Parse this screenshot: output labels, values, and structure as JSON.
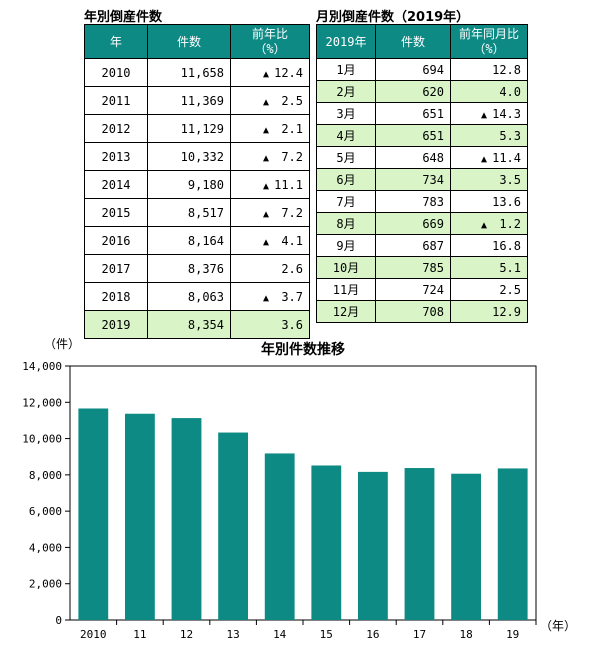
{
  "left_table": {
    "title": "年別倒産件数",
    "headers": [
      "年",
      "件数",
      "前年比",
      "（%）"
    ],
    "rows": [
      {
        "year": "2010",
        "count": "11,658",
        "tri": "▲",
        "ratio": "12.4"
      },
      {
        "year": "2011",
        "count": "11,369",
        "tri": "▲",
        "ratio": "2.5"
      },
      {
        "year": "2012",
        "count": "11,129",
        "tri": "▲",
        "ratio": "2.1"
      },
      {
        "year": "2013",
        "count": "10,332",
        "tri": "▲",
        "ratio": "7.2"
      },
      {
        "year": "2014",
        "count": "9,180",
        "tri": "▲",
        "ratio": "11.1"
      },
      {
        "year": "2015",
        "count": "8,517",
        "tri": "▲",
        "ratio": "7.2"
      },
      {
        "year": "2016",
        "count": "8,164",
        "tri": "▲",
        "ratio": "4.1"
      },
      {
        "year": "2017",
        "count": "8,376",
        "tri": "",
        "ratio": "2.6"
      },
      {
        "year": "2018",
        "count": "8,063",
        "tri": "▲",
        "ratio": "3.7"
      },
      {
        "year": "2019",
        "count": "8,354",
        "tri": "",
        "ratio": "3.6"
      }
    ]
  },
  "right_table": {
    "title": "月別倒産件数（2019年）",
    "headers": [
      "2019年",
      "件数",
      "前年同月比",
      "（%）"
    ],
    "rows": [
      {
        "month": "1月",
        "count": "694",
        "tri": "",
        "ratio": "12.8"
      },
      {
        "month": "2月",
        "count": "620",
        "tri": "",
        "ratio": "4.0"
      },
      {
        "month": "3月",
        "count": "651",
        "tri": "▲",
        "ratio": "14.3"
      },
      {
        "month": "4月",
        "count": "651",
        "tri": "",
        "ratio": "5.3"
      },
      {
        "month": "5月",
        "count": "648",
        "tri": "▲",
        "ratio": "11.4"
      },
      {
        "month": "6月",
        "count": "734",
        "tri": "",
        "ratio": "3.5"
      },
      {
        "month": "7月",
        "count": "783",
        "tri": "",
        "ratio": "13.6"
      },
      {
        "month": "8月",
        "count": "669",
        "tri": "▲",
        "ratio": "1.2"
      },
      {
        "month": "9月",
        "count": "687",
        "tri": "",
        "ratio": "16.8"
      },
      {
        "month": "10月",
        "count": "785",
        "tri": "",
        "ratio": "5.1"
      },
      {
        "month": "11月",
        "count": "724",
        "tri": "",
        "ratio": "2.5"
      },
      {
        "month": "12月",
        "count": "708",
        "tri": "",
        "ratio": "12.9"
      }
    ]
  },
  "chart_data": {
    "type": "bar",
    "title": "年別件数推移",
    "ylabel": "（件）",
    "xlabel": "（年）",
    "categories": [
      "2010",
      "11",
      "12",
      "13",
      "14",
      "15",
      "16",
      "17",
      "18",
      "19"
    ],
    "values": [
      11658,
      11369,
      11129,
      10332,
      9180,
      8517,
      8164,
      8376,
      8063,
      8354
    ],
    "ylim": [
      0,
      14000
    ],
    "yticks": [
      "0",
      "2,000",
      "4,000",
      "6,000",
      "8,000",
      "10,000",
      "12,000",
      "14,000"
    ],
    "grid": false,
    "bar_color": "#0e8a84"
  },
  "colors": {
    "header": "#0e8a84",
    "highlight": "#d9f5c8"
  }
}
